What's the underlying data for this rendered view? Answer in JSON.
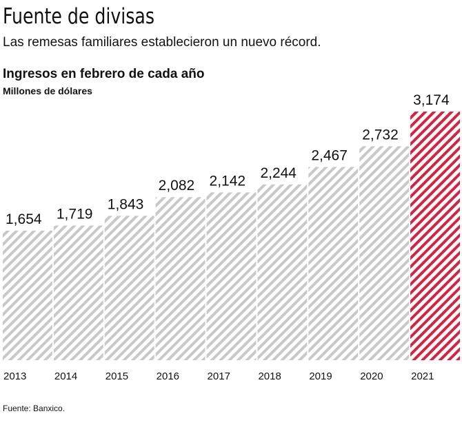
{
  "chart_data": {
    "type": "bar",
    "title": "Fuente de divisas",
    "subtitle": "Las remesas familiares establecieron un nuevo récord.",
    "chart_title": "Ingresos en febrero de cada año",
    "y_label": "Millones de dólares",
    "source": "Fuente: Banxico.",
    "categories": [
      "2013",
      "2014",
      "2015",
      "2016",
      "2017",
      "2018",
      "2019",
      "2020",
      "2021"
    ],
    "values": [
      1654,
      1719,
      1843,
      2082,
      2142,
      2244,
      2467,
      2732,
      3174
    ],
    "value_labels": [
      "1,654",
      "1,719",
      "1,843",
      "2,082",
      "2,142",
      "2,244",
      "2,467",
      "2,732",
      "3,174"
    ],
    "colors": [
      "#c8c8c8",
      "#c8c8c8",
      "#c8c8c8",
      "#c8c8c8",
      "#c8c8c8",
      "#c8c8c8",
      "#c8c8c8",
      "#c8c8c8",
      "#d6213f"
    ]
  }
}
